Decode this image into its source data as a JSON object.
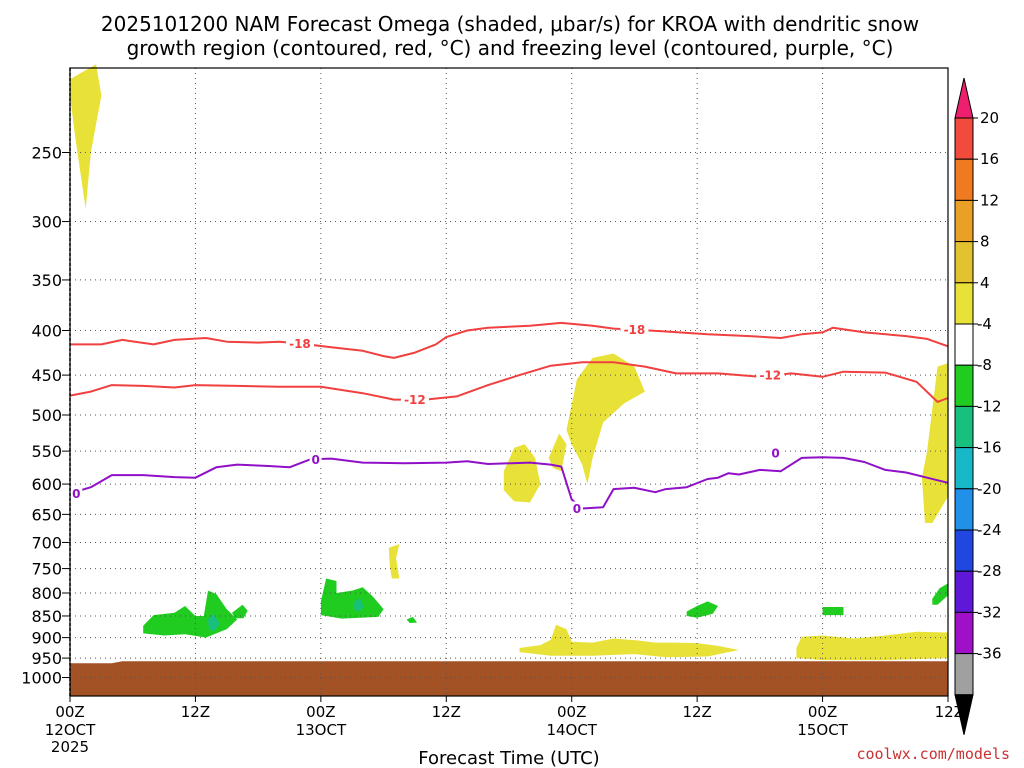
{
  "chart_data": {
    "type": "heatmap",
    "title_line1": "2025101200 NAM Forecast Omega (shaded, μbar/s) for KROA with dendritic snow",
    "title_line2": "growth region (contoured, red, °C) and freezing level (contoured, purple, °C)",
    "xlabel": "Forecast Time (UTC)",
    "x_ticks": [
      {
        "hour": 0,
        "label": "00Z",
        "date": "12OCT",
        "year": "2025"
      },
      {
        "hour": 12,
        "label": "12Z",
        "date": "",
        "year": ""
      },
      {
        "hour": 24,
        "label": "00Z",
        "date": "13OCT",
        "year": ""
      },
      {
        "hour": 36,
        "label": "12Z",
        "date": "",
        "year": ""
      },
      {
        "hour": 48,
        "label": "00Z",
        "date": "14OCT",
        "year": ""
      },
      {
        "hour": 60,
        "label": "12Z",
        "date": "",
        "year": ""
      },
      {
        "hour": 72,
        "label": "00Z",
        "date": "15OCT",
        "year": ""
      },
      {
        "hour": 84,
        "label": "12Z",
        "date": "",
        "year": ""
      }
    ],
    "xlim": [
      0,
      84
    ],
    "y_axis_scale": "log-pressure, inverted",
    "y_ticks": [
      250,
      300,
      350,
      400,
      450,
      500,
      550,
      600,
      650,
      700,
      750,
      800,
      850,
      900,
      950,
      1000
    ],
    "ylim_hPa": [
      1050,
      200
    ],
    "grid": true,
    "colorbar": {
      "label_values": [
        20,
        16,
        12,
        8,
        4,
        -4,
        -8,
        -12,
        -16,
        -20,
        -24,
        -28,
        -32,
        -36
      ],
      "colors_top_to_bottom": [
        "#ee1f6e",
        "#f24a3d",
        "#ef7a20",
        "#eaa026",
        "#e3c230",
        "#e8e238",
        "#ffffff",
        "#20cc20",
        "#18c080",
        "#18b8c8",
        "#2090e8",
        "#2048e0",
        "#6018d8",
        "#a010c8",
        "#a0a0a0",
        "#000000"
      ],
      "position": "right"
    },
    "contours": [
      {
        "name": "-18",
        "color": "#f04040",
        "points": [
          [
            0,
            415
          ],
          [
            3,
            415
          ],
          [
            5,
            410
          ],
          [
            8,
            415
          ],
          [
            10,
            410
          ],
          [
            13,
            408
          ],
          [
            15,
            412
          ],
          [
            18,
            413
          ],
          [
            20,
            412
          ],
          [
            22,
            414
          ],
          [
            25,
            418
          ],
          [
            28,
            422
          ],
          [
            30,
            428
          ],
          [
            31,
            430
          ],
          [
            33,
            424
          ],
          [
            35,
            415
          ],
          [
            36,
            407
          ],
          [
            38,
            400
          ],
          [
            40,
            397
          ],
          [
            44,
            395
          ],
          [
            47,
            392
          ],
          [
            50,
            395
          ],
          [
            52,
            398
          ],
          [
            54,
            399
          ],
          [
            57,
            401
          ],
          [
            61,
            404
          ],
          [
            65,
            406
          ],
          [
            68,
            408
          ],
          [
            70,
            404
          ],
          [
            72,
            402
          ],
          [
            73,
            397
          ],
          [
            76,
            402
          ],
          [
            80,
            406
          ],
          [
            82,
            409
          ],
          [
            84,
            417
          ]
        ],
        "labels": [
          {
            "hour": 22,
            "p": 414
          },
          {
            "hour": 54,
            "p": 399
          }
        ]
      },
      {
        "name": "-12",
        "color": "#f04040",
        "points": [
          [
            0,
            475
          ],
          [
            2,
            470
          ],
          [
            4,
            462
          ],
          [
            7,
            463
          ],
          [
            10,
            465
          ],
          [
            12,
            462
          ],
          [
            16,
            463
          ],
          [
            20,
            464
          ],
          [
            24,
            464
          ],
          [
            28,
            472
          ],
          [
            31,
            480
          ],
          [
            34,
            480
          ],
          [
            37,
            476
          ],
          [
            40,
            462
          ],
          [
            43,
            450
          ],
          [
            46,
            439
          ],
          [
            49,
            435
          ],
          [
            52,
            435
          ],
          [
            55,
            440
          ],
          [
            58,
            448
          ],
          [
            62,
            448
          ],
          [
            66,
            452
          ],
          [
            69,
            448
          ],
          [
            72,
            452
          ],
          [
            74,
            446
          ],
          [
            78,
            447
          ],
          [
            81,
            458
          ],
          [
            83,
            483
          ],
          [
            84,
            478
          ]
        ],
        "labels": [
          {
            "hour": 33,
            "p": 480
          },
          {
            "hour": 67,
            "p": 450
          }
        ]
      },
      {
        "name": "0",
        "color": "#9010c8",
        "points": [
          [
            0,
            615
          ],
          [
            2,
            605
          ],
          [
            4,
            586
          ],
          [
            7,
            586
          ],
          [
            10,
            589
          ],
          [
            12,
            590
          ],
          [
            14,
            574
          ],
          [
            16,
            570
          ],
          [
            19,
            572
          ],
          [
            21,
            574
          ],
          [
            23,
            562
          ],
          [
            25,
            561
          ],
          [
            28,
            567
          ],
          [
            32,
            568
          ],
          [
            36,
            567
          ],
          [
            38,
            565
          ],
          [
            40,
            569
          ],
          [
            44,
            567
          ],
          [
            46,
            570
          ],
          [
            47,
            573
          ],
          [
            48,
            625
          ],
          [
            49,
            640
          ],
          [
            51,
            638
          ],
          [
            52,
            608
          ],
          [
            54,
            606
          ],
          [
            56,
            613
          ],
          [
            57,
            608
          ],
          [
            59,
            605
          ],
          [
            61,
            592
          ],
          [
            62,
            590
          ],
          [
            63,
            583
          ],
          [
            64,
            585
          ],
          [
            66,
            578
          ],
          [
            68,
            580
          ],
          [
            70,
            560
          ],
          [
            72,
            559
          ],
          [
            74,
            560
          ],
          [
            76,
            566
          ],
          [
            78,
            578
          ],
          [
            80,
            582
          ],
          [
            82,
            590
          ],
          [
            84,
            598
          ]
        ],
        "labels": [
          {
            "hour": 0.6,
            "p": 615
          },
          {
            "hour": 23.5,
            "p": 562
          },
          {
            "hour": 48.5,
            "p": 640
          },
          {
            "hour": 67.5,
            "p": 553
          }
        ]
      }
    ],
    "shaded_regions": [
      {
        "range": "4 to 8",
        "color": "#e8e238",
        "points": [
          [
            0,
            206
          ],
          [
            2.5,
            198
          ],
          [
            3,
            215
          ],
          [
            2,
            250
          ],
          [
            1.5,
            290
          ],
          [
            0.5,
            240
          ],
          [
            0,
            215
          ]
        ]
      },
      {
        "range": "4 to 8",
        "color": "#e8e238",
        "points": [
          [
            41.5,
            580
          ],
          [
            42.5,
            545
          ],
          [
            43.5,
            540
          ],
          [
            44.5,
            560
          ],
          [
            45,
            600
          ],
          [
            44,
            630
          ],
          [
            42.5,
            628
          ],
          [
            41.5,
            610
          ]
        ]
      },
      {
        "range": "4 to 8",
        "color": "#e8e238",
        "points": [
          [
            45.8,
            560
          ],
          [
            46.8,
            525
          ],
          [
            47.5,
            540
          ],
          [
            47,
            580
          ],
          [
            46.2,
            575
          ]
        ]
      },
      {
        "range": "4 to 8",
        "color": "#e8e238",
        "points": [
          [
            47.5,
            520
          ],
          [
            48.5,
            455
          ],
          [
            50,
            430
          ],
          [
            52,
            425
          ],
          [
            54,
            440
          ],
          [
            55,
            470
          ],
          [
            53,
            485
          ],
          [
            51,
            510
          ],
          [
            50,
            560
          ],
          [
            49.5,
            600
          ],
          [
            49,
            570
          ],
          [
            48,
            540
          ]
        ]
      },
      {
        "range": "4 to 8",
        "color": "#e8e238",
        "points": [
          [
            30.5,
            710
          ],
          [
            31.5,
            703
          ],
          [
            31.2,
            730
          ],
          [
            31.5,
            770
          ],
          [
            30.8,
            770
          ],
          [
            30.6,
            745
          ]
        ]
      },
      {
        "range": "4 to 8",
        "color": "#e8e238",
        "points": [
          [
            83,
            440
          ],
          [
            84,
            436
          ],
          [
            84,
            620
          ],
          [
            82.5,
            665
          ],
          [
            81.8,
            665
          ],
          [
            81.5,
            590
          ],
          [
            82,
            550
          ]
        ]
      },
      {
        "range": "4 to 8",
        "color": "#e8e238",
        "points": [
          [
            43,
            925
          ],
          [
            45,
            918
          ],
          [
            46,
            905
          ],
          [
            46.5,
            870
          ],
          [
            47.5,
            880
          ],
          [
            48,
            910
          ],
          [
            50,
            912
          ],
          [
            52,
            902
          ],
          [
            54,
            906
          ],
          [
            56,
            912
          ],
          [
            58,
            912
          ],
          [
            60,
            913
          ],
          [
            62,
            920
          ],
          [
            64,
            930
          ],
          [
            61,
            946
          ],
          [
            57,
            948
          ],
          [
            54,
            940
          ],
          [
            50,
            944
          ],
          [
            46,
            944
          ],
          [
            43,
            935
          ]
        ]
      },
      {
        "range": "4 to 8",
        "color": "#e8e238",
        "points": [
          [
            69.5,
            925
          ],
          [
            70,
            898
          ],
          [
            72,
            895
          ],
          [
            75,
            902
          ],
          [
            78,
            895
          ],
          [
            81,
            886
          ],
          [
            84,
            888
          ],
          [
            84,
            950
          ],
          [
            78,
            955
          ],
          [
            72,
            955
          ],
          [
            69.5,
            950
          ]
        ]
      },
      {
        "range": "-4 to -8",
        "color": "#20cc20",
        "points": [
          [
            7,
            872
          ],
          [
            8,
            848
          ],
          [
            10,
            843
          ],
          [
            11,
            828
          ],
          [
            12,
            850
          ],
          [
            12.8,
            850
          ],
          [
            13.2,
            795
          ],
          [
            14,
            802
          ],
          [
            15,
            835
          ],
          [
            16,
            858
          ],
          [
            15,
            880
          ],
          [
            13,
            900
          ],
          [
            11,
            892
          ],
          [
            9,
            895
          ],
          [
            7,
            890
          ]
        ]
      },
      {
        "range": "-4 to -8",
        "color": "#20cc20",
        "points": [
          [
            15.5,
            843
          ],
          [
            16.5,
            825
          ],
          [
            17,
            838
          ],
          [
            16.6,
            855
          ],
          [
            15.8,
            855
          ]
        ]
      },
      {
        "range": "-4 to -8",
        "color": "#20cc20",
        "points": [
          [
            24,
            818
          ],
          [
            24.5,
            770
          ],
          [
            25.5,
            775
          ],
          [
            25.5,
            800
          ],
          [
            27,
            795
          ],
          [
            28,
            788
          ],
          [
            29,
            808
          ],
          [
            30,
            835
          ],
          [
            29.5,
            852
          ],
          [
            26,
            856
          ],
          [
            24,
            848
          ]
        ]
      },
      {
        "range": "-4 to -8",
        "color": "#20cc20",
        "points": [
          [
            32.2,
            858
          ],
          [
            32.8,
            852
          ],
          [
            33.2,
            865
          ],
          [
            32.5,
            866
          ]
        ]
      },
      {
        "range": "-4 to -8",
        "color": "#20cc20",
        "points": [
          [
            59,
            840
          ],
          [
            60,
            828
          ],
          [
            61,
            818
          ],
          [
            62,
            828
          ],
          [
            61.5,
            845
          ],
          [
            60,
            854
          ],
          [
            59,
            850
          ]
        ]
      },
      {
        "range": "-4 to -8",
        "color": "#20cc20",
        "points": [
          [
            72,
            830
          ],
          [
            74,
            830
          ],
          [
            74,
            848
          ],
          [
            72,
            848
          ]
        ]
      },
      {
        "range": "-4 to -8",
        "color": "#20cc20",
        "points": [
          [
            82.5,
            812
          ],
          [
            83.2,
            790
          ],
          [
            84,
            780
          ],
          [
            84,
            805
          ],
          [
            83,
            825
          ],
          [
            82.5,
            825
          ]
        ]
      },
      {
        "range": "-8 to -12",
        "color": "#18c080",
        "points": [
          [
            13.2,
            858
          ],
          [
            13.8,
            845
          ],
          [
            14.3,
            868
          ],
          [
            13.8,
            885
          ],
          [
            13.3,
            880
          ]
        ]
      },
      {
        "range": "-8 to -12",
        "color": "#18c080",
        "points": [
          [
            27.2,
            820
          ],
          [
            27.7,
            810
          ],
          [
            28.1,
            830
          ],
          [
            27.6,
            840
          ],
          [
            27.2,
            835
          ]
        ]
      }
    ],
    "surface": {
      "label": "terrain",
      "color": "#a35226",
      "top_hPa_left": 963,
      "top_hPa_right": 958
    }
  },
  "credit": "coolwx.com/models"
}
